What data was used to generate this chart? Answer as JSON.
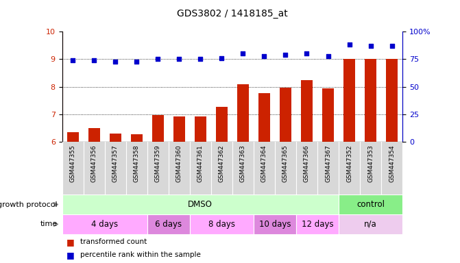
{
  "title": "GDS3802 / 1418185_at",
  "samples": [
    "GSM447355",
    "GSM447356",
    "GSM447357",
    "GSM447358",
    "GSM447359",
    "GSM447360",
    "GSM447361",
    "GSM447362",
    "GSM447363",
    "GSM447364",
    "GSM447365",
    "GSM447366",
    "GSM447367",
    "GSM447352",
    "GSM447353",
    "GSM447354"
  ],
  "transformed_count": [
    6.35,
    6.5,
    6.3,
    6.28,
    6.98,
    6.92,
    6.92,
    7.28,
    8.08,
    7.78,
    7.98,
    8.25,
    7.95,
    9.02,
    9.0,
    9.02
  ],
  "percentile_rank": [
    74,
    74,
    73,
    73,
    75,
    75,
    75,
    76,
    80,
    78,
    79,
    80,
    78,
    88,
    87,
    87
  ],
  "bar_color": "#cc2200",
  "dot_color": "#0000cc",
  "ylim_left": [
    6,
    10
  ],
  "ylim_right": [
    0,
    100
  ],
  "yticks_left": [
    6,
    7,
    8,
    9,
    10
  ],
  "yticks_right": [
    0,
    25,
    50,
    75,
    100
  ],
  "ytick_labels_right": [
    "0",
    "25",
    "50",
    "75",
    "100%"
  ],
  "growth_protocol_segs": [
    {
      "label": "DMSO",
      "start": 0,
      "end": 13,
      "color": "#ccffcc"
    },
    {
      "label": "control",
      "start": 13,
      "end": 16,
      "color": "#88ee88"
    }
  ],
  "time_segs": [
    {
      "label": "4 days",
      "start": 0,
      "end": 4,
      "color": "#ffaaff"
    },
    {
      "label": "6 days",
      "start": 4,
      "end": 6,
      "color": "#dd88dd"
    },
    {
      "label": "8 days",
      "start": 6,
      "end": 9,
      "color": "#ffaaff"
    },
    {
      "label": "10 days",
      "start": 9,
      "end": 11,
      "color": "#dd88dd"
    },
    {
      "label": "12 days",
      "start": 11,
      "end": 13,
      "color": "#ffaaff"
    },
    {
      "label": "n/a",
      "start": 13,
      "end": 16,
      "color": "#eeccee"
    }
  ],
  "legend_bar_label": "transformed count",
  "legend_dot_label": "percentile rank within the sample",
  "label_growth": "growth protocol",
  "label_time": "time",
  "background_color": "#ffffff",
  "xticklabel_bg": "#d8d8d8",
  "xticklabel_fontsize": 6.5,
  "bar_width": 0.55
}
